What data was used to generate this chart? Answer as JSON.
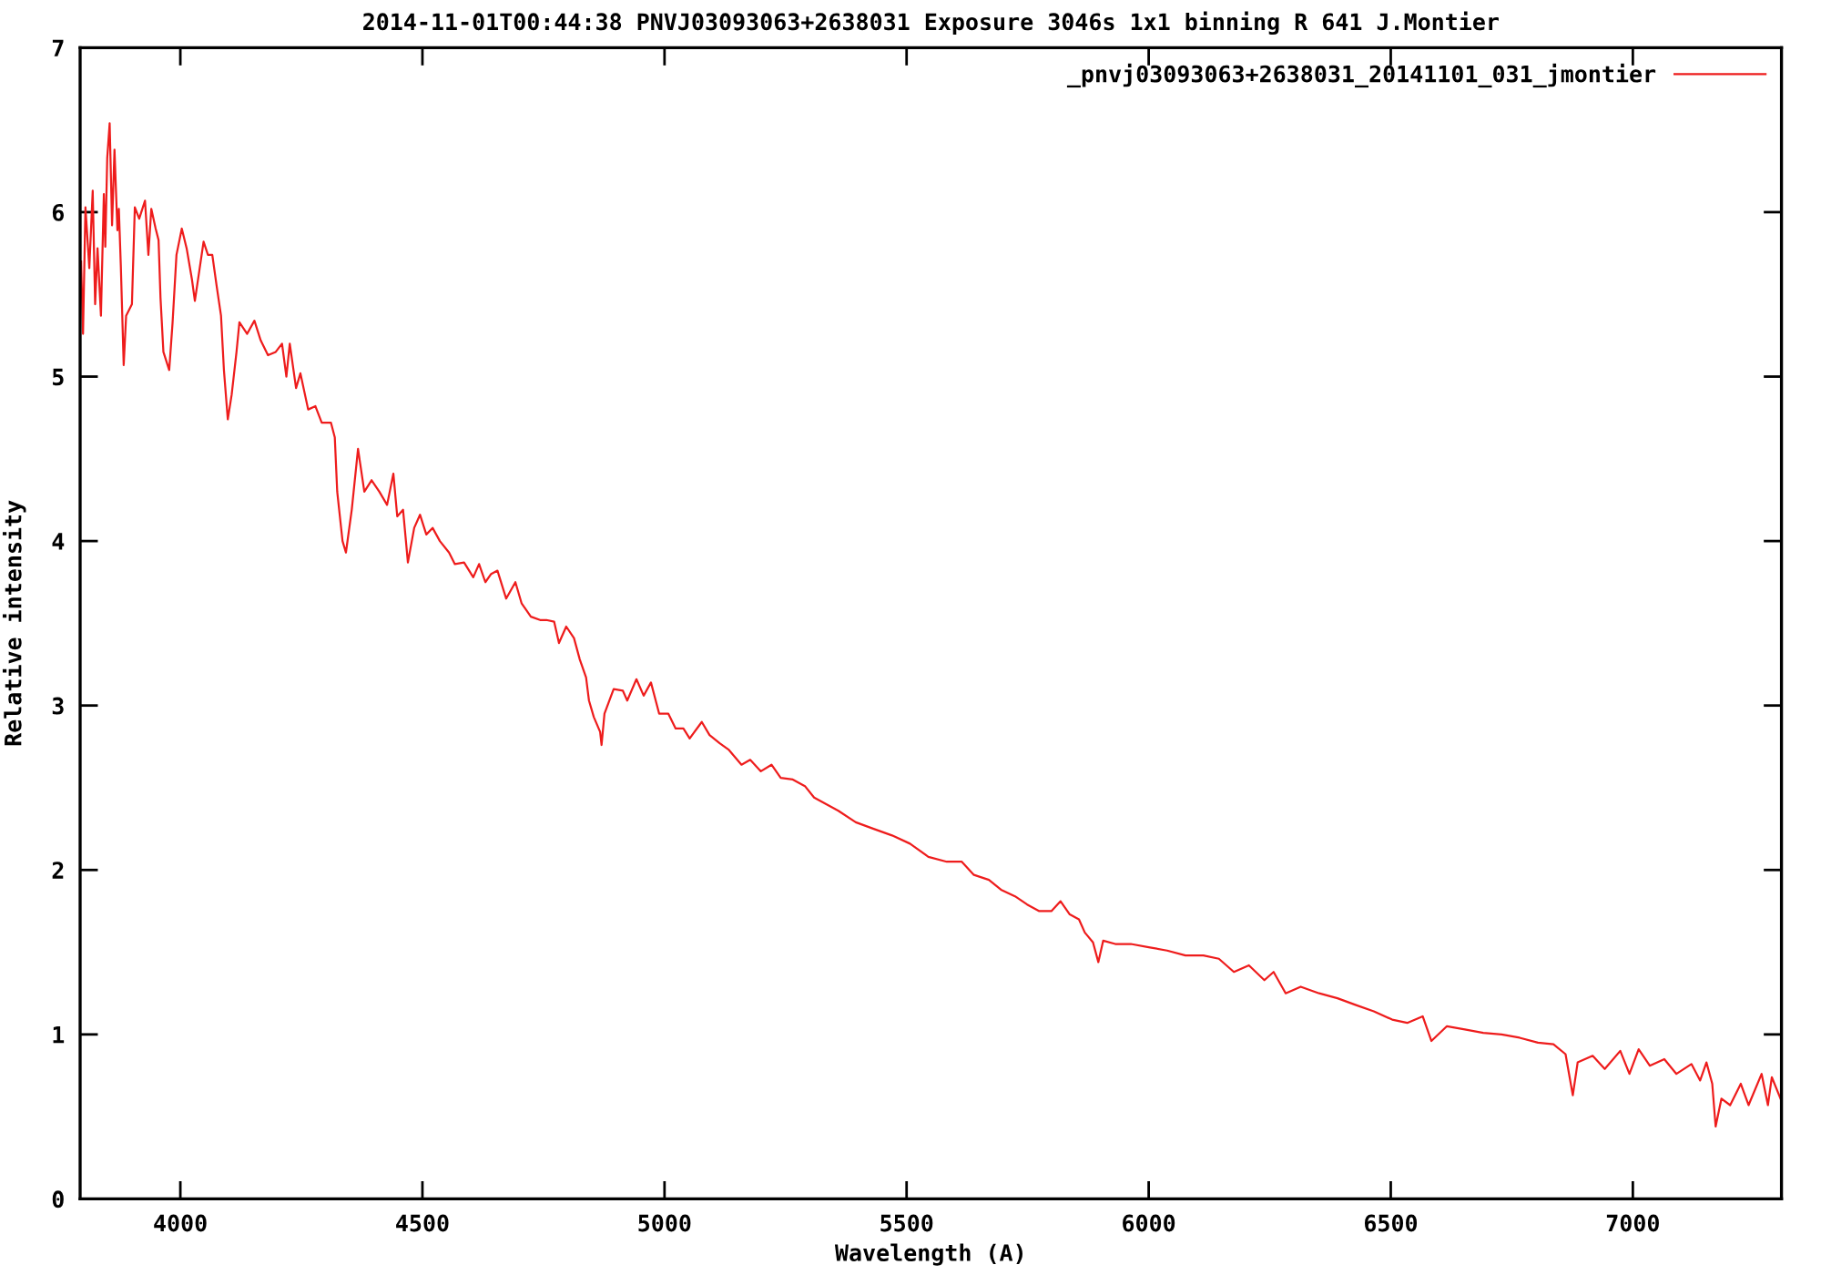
{
  "chart_data": {
    "type": "line",
    "title": "2014-11-01T00:44:38 PNVJ03093063+2638031 Exposure 3046s 1x1 binning R 641 J.Montier",
    "xlabel": "Wavelength (A)",
    "ylabel": "Relative intensity",
    "x": [
      3795,
      3799,
      3804,
      3812,
      3819,
      3824,
      3829,
      3836,
      3842,
      3845,
      3849,
      3854,
      3859,
      3864,
      3870,
      3873,
      3877,
      3883,
      3888,
      3900,
      3906,
      3915,
      3927,
      3934,
      3940,
      3949,
      3955,
      3959,
      3965,
      3977,
      3984,
      3992,
      4003,
      4013,
      4024,
      4030,
      4040,
      4048,
      4057,
      4066,
      4075,
      4084,
      4090,
      4098,
      4106,
      4116,
      4122,
      4138,
      4153,
      4166,
      4181,
      4197,
      4210,
      4219,
      4226,
      4239,
      4248,
      4264,
      4279,
      4292,
      4311,
      4319,
      4324,
      4335,
      4342,
      4354,
      4367,
      4380,
      4395,
      4411,
      4427,
      4440,
      4448,
      4460,
      4470,
      4483,
      4495,
      4508,
      4521,
      4536,
      4555,
      4567,
      4586,
      4605,
      4617,
      4630,
      4642,
      4655,
      4673,
      4692,
      4705,
      4724,
      4743,
      4756,
      4772,
      4782,
      4797,
      4813,
      4825,
      4838,
      4844,
      4854,
      4867,
      4870,
      4876,
      4886,
      4895,
      4914,
      4923,
      4942,
      4957,
      4972,
      4989,
      5008,
      5023,
      5039,
      5052,
      5077,
      5093,
      5114,
      5133,
      5159,
      5177,
      5199,
      5221,
      5240,
      5265,
      5290,
      5309,
      5334,
      5359,
      5395,
      5432,
      5470,
      5507,
      5545,
      5583,
      5614,
      5639,
      5670,
      5695,
      5724,
      5749,
      5774,
      5799,
      5818,
      5837,
      5856,
      5868,
      5885,
      5896,
      5906,
      5931,
      5963,
      6000,
      6038,
      6076,
      6113,
      6145,
      6176,
      6207,
      6239,
      6258,
      6283,
      6314,
      6352,
      6390,
      6427,
      6465,
      6503,
      6534,
      6566,
      6584,
      6616,
      6653,
      6691,
      6729,
      6766,
      6804,
      6836,
      6861,
      6876,
      6886,
      6917,
      6942,
      6974,
      6993,
      7012,
      7035,
      7065,
      7090,
      7121,
      7139,
      7152,
      7164,
      7171,
      7183,
      7201,
      7223,
      7239,
      7266,
      7279,
      7287,
      7305
    ],
    "series": [
      {
        "name": "_pnvj03093063+2638031_20141101_031_jmontier",
        "color": "#ee1c1c",
        "values": [
          5.7,
          5.26,
          6.03,
          5.66,
          6.13,
          5.44,
          5.78,
          5.37,
          6.11,
          5.79,
          6.33,
          6.54,
          5.92,
          6.38,
          5.89,
          6.02,
          5.68,
          5.07,
          5.37,
          5.44,
          6.03,
          5.96,
          6.07,
          5.74,
          6.02,
          5.9,
          5.83,
          5.48,
          5.15,
          5.04,
          5.33,
          5.74,
          5.9,
          5.78,
          5.59,
          5.46,
          5.66,
          5.82,
          5.74,
          5.74,
          5.55,
          5.37,
          5.04,
          4.74,
          4.89,
          5.15,
          5.33,
          5.26,
          5.34,
          5.22,
          5.13,
          5.15,
          5.2,
          5.0,
          5.2,
          4.93,
          5.02,
          4.8,
          4.82,
          4.72,
          4.72,
          4.63,
          4.3,
          4.0,
          3.93,
          4.19,
          4.56,
          4.3,
          4.37,
          4.3,
          4.22,
          4.41,
          4.15,
          4.19,
          3.87,
          4.08,
          4.16,
          4.04,
          4.08,
          4.0,
          3.93,
          3.86,
          3.87,
          3.78,
          3.86,
          3.75,
          3.8,
          3.82,
          3.65,
          3.75,
          3.62,
          3.54,
          3.52,
          3.52,
          3.51,
          3.38,
          3.48,
          3.41,
          3.28,
          3.17,
          3.03,
          2.93,
          2.84,
          2.76,
          2.95,
          3.03,
          3.1,
          3.09,
          3.03,
          3.16,
          3.06,
          3.14,
          2.95,
          2.95,
          2.86,
          2.86,
          2.8,
          2.9,
          2.82,
          2.77,
          2.73,
          2.64,
          2.67,
          2.6,
          2.64,
          2.56,
          2.55,
          2.51,
          2.44,
          2.4,
          2.36,
          2.29,
          2.25,
          2.21,
          2.16,
          2.08,
          2.05,
          2.05,
          1.97,
          1.94,
          1.88,
          1.84,
          1.79,
          1.75,
          1.75,
          1.81,
          1.73,
          1.7,
          1.62,
          1.56,
          1.44,
          1.57,
          1.55,
          1.55,
          1.53,
          1.51,
          1.48,
          1.48,
          1.46,
          1.38,
          1.42,
          1.33,
          1.38,
          1.25,
          1.29,
          1.25,
          1.22,
          1.18,
          1.14,
          1.09,
          1.07,
          1.11,
          0.96,
          1.05,
          1.03,
          1.01,
          1.0,
          0.98,
          0.95,
          0.94,
          0.88,
          0.63,
          0.83,
          0.87,
          0.79,
          0.9,
          0.76,
          0.91,
          0.81,
          0.85,
          0.76,
          0.82,
          0.72,
          0.83,
          0.7,
          0.44,
          0.61,
          0.57,
          0.7,
          0.57,
          0.76,
          0.57,
          0.74,
          0.61
        ]
      }
    ],
    "xlim": [
      3793,
      7307
    ],
    "ylim": [
      0,
      7
    ],
    "xticks": [
      4000,
      4500,
      5000,
      5500,
      6000,
      6500,
      7000
    ],
    "yticks": [
      0,
      1,
      2,
      3,
      4,
      5,
      6,
      7
    ],
    "legend": "top right",
    "line_style": "solid"
  }
}
